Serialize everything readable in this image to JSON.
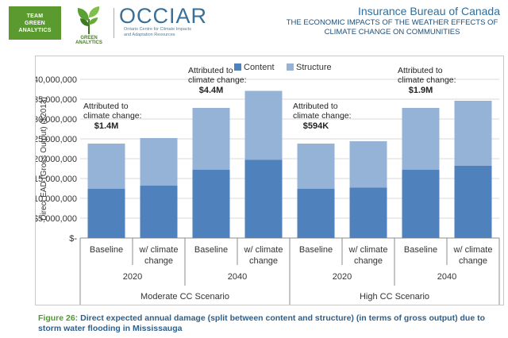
{
  "header": {
    "team_lines": [
      "TEAM",
      "GREEN",
      "ANALYTICS"
    ],
    "ga_label": "GREEN ANALYTICS",
    "occiar_title": "OCCIAR",
    "occiar_sub_lines": [
      "Ontario Centre for Climate Impacts",
      "and Adaptation Resources"
    ],
    "ibc_title": "Insurance Bureau of Canada",
    "ibc_subtitle": "The Economic Impacts of the Weather Effects of Climate Change on Communities"
  },
  "colors": {
    "content": "#4f81bd",
    "structure": "#95b3d7",
    "team_green": "#5a9a2e",
    "caption_blue": "#2e5f8a",
    "caption_green": "#4f9a2f"
  },
  "chart_data": {
    "type": "bar",
    "stacked": true,
    "ylabel": "Direct EAD (Gross Output) ($2013)",
    "ylim": [
      0,
      40000000
    ],
    "yticks": [
      0,
      5000000,
      10000000,
      15000000,
      20000000,
      25000000,
      30000000,
      35000000,
      40000000
    ],
    "ytick_labels": [
      "$-",
      "$5,000,000",
      "$10,000,000",
      "$15,000,000",
      "$20,000,000",
      "$25,000,000",
      "$30,000,000",
      "$35,000,000",
      "$40,000,000"
    ],
    "legend": [
      "Content",
      "Structure"
    ],
    "legend_position": "top-center",
    "categories": [
      [
        "Baseline"
      ],
      [
        "w/ climate",
        "change"
      ],
      [
        "Baseline"
      ],
      [
        "w/ climate",
        "change"
      ],
      [
        "Baseline"
      ],
      [
        "w/ climate",
        "change"
      ],
      [
        "Baseline"
      ],
      [
        "w/ climate",
        "change"
      ]
    ],
    "years": [
      "2020",
      "2040",
      "2020",
      "2040"
    ],
    "scenarios": [
      "Moderate CC Scenario",
      "High CC Scenario"
    ],
    "series": [
      {
        "name": "Content",
        "values": [
          12400000,
          13200000,
          17200000,
          19700000,
          12400000,
          12700000,
          17200000,
          18200000
        ]
      },
      {
        "name": "Structure",
        "values": [
          11400000,
          12000000,
          15600000,
          17400000,
          11400000,
          11700000,
          15600000,
          16400000
        ]
      }
    ],
    "annotations": [
      {
        "lines": [
          "Attributed to",
          "climate change:"
        ],
        "value": "$1.4M",
        "group": 0
      },
      {
        "lines": [
          "Attributed to",
          "climate change:"
        ],
        "value": "$4.4M",
        "group": 1
      },
      {
        "lines": [
          "Attributed to",
          "climate change:"
        ],
        "value": "$594K",
        "group": 2
      },
      {
        "lines": [
          "Attributed to",
          "climate change:"
        ],
        "value": "$1.9M",
        "group": 3
      }
    ]
  },
  "caption": {
    "label": "Figure 26:",
    "text": " Direct expected annual damage (split between content and structure) (in terms of gross output) due to storm water flooding in Mississauga"
  }
}
